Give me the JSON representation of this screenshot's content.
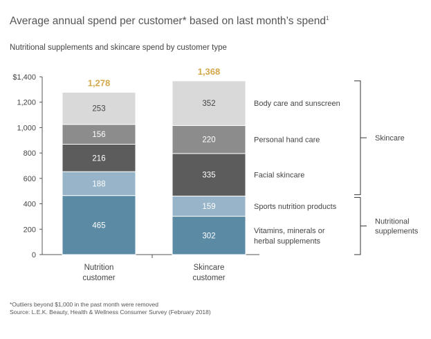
{
  "title": "Average annual spend per customer* based on last month’s spend",
  "title_mark": "1",
  "subtitle": "Nutritional supplements and skincare spend by customer type",
  "chart_data": {
    "type": "bar",
    "stacked": true,
    "categories": [
      "Nutrition customer",
      "Skincare customer"
    ],
    "category_lines": [
      [
        "Nutrition",
        "customer"
      ],
      [
        "Skincare",
        "customer"
      ]
    ],
    "series": [
      {
        "name": "Vitamins, minerals or herbal supplements",
        "label_lines": [
          "Vitamins, minerals or",
          "herbal supplements"
        ],
        "values": [
          465,
          302
        ],
        "color": "#5b8aa5"
      },
      {
        "name": "Sports nutrition products",
        "label_lines": [
          "Sports nutrition products"
        ],
        "values": [
          188,
          159
        ],
        "color": "#97b4c9"
      },
      {
        "name": "Facial skincare",
        "label_lines": [
          "Facial skincare"
        ],
        "values": [
          216,
          335
        ],
        "color": "#5c5c5c"
      },
      {
        "name": "Personal hand care",
        "label_lines": [
          "Personal hand care"
        ],
        "values": [
          156,
          220
        ],
        "color": "#8c8c8c"
      },
      {
        "name": "Body care and sunscreen",
        "label_lines": [
          "Body care and sunscreen"
        ],
        "values": [
          253,
          352
        ],
        "color": "#d9d9d9"
      }
    ],
    "totals": [
      1278,
      1368
    ],
    "total_labels": [
      "1,278",
      "1,368"
    ],
    "total_color": "#d4a84a",
    "ylim": [
      0,
      1400
    ],
    "yticks": [
      0,
      200,
      400,
      600,
      800,
      1000,
      1200,
      1400
    ],
    "ytick_labels": [
      "0",
      "200",
      "400",
      "600",
      "800",
      "1,000",
      "1,200",
      "$1,400"
    ],
    "groups": [
      {
        "name": "Skincare",
        "label_lines": [
          "Skincare"
        ],
        "series": [
          "Facial skincare",
          "Personal hand care",
          "Body care and sunscreen"
        ]
      },
      {
        "name": "Nutritional supplements",
        "label_lines": [
          "Nutritional",
          "supplements"
        ],
        "series": [
          "Vitamins, minerals or herbal supplements",
          "Sports nutrition products"
        ]
      }
    ]
  },
  "footnote_1": "*Outliers beyond $1,000 in the past month were removed",
  "footnote_2": "Source: L.E.K. Beauty, Health & Wellness Consumer Survey (February 2018)"
}
